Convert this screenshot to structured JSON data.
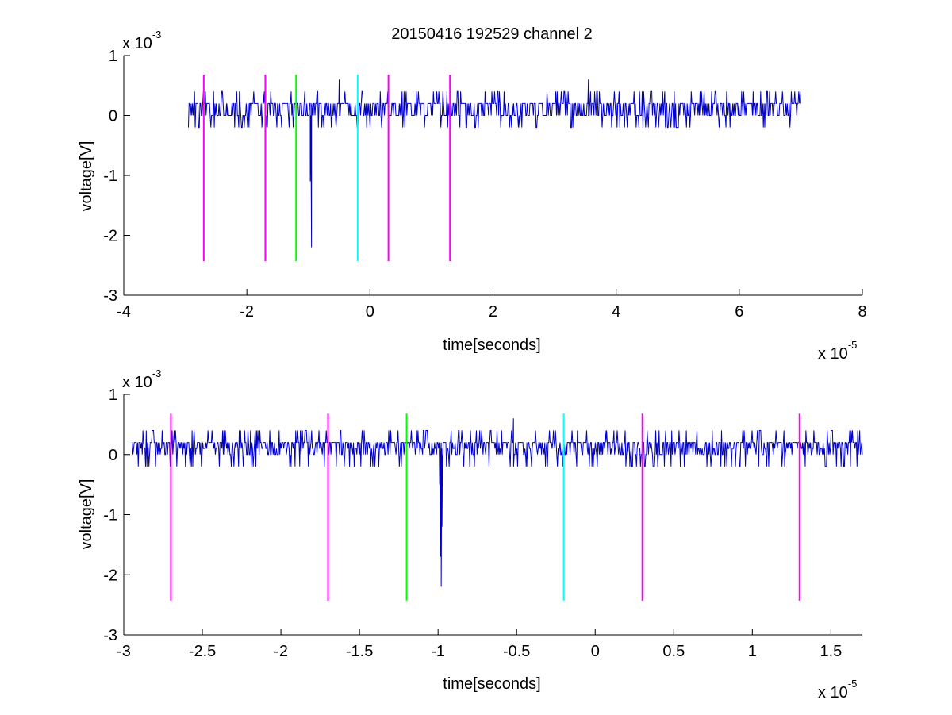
{
  "figure": {
    "title": "20150416 192529 channel 2"
  },
  "colors": {
    "signal": "#0000c8",
    "marker_magenta": "#ff00ff",
    "marker_green": "#00ff00",
    "marker_cyan": "#00ffff",
    "axes": "#000000",
    "background": "#ffffff"
  },
  "chart_data": [
    {
      "type": "line",
      "title": "20150416 192529 channel 2",
      "xlabel": "time[seconds]",
      "ylabel": "voltage[V]",
      "x_exponent_label": "x 10",
      "x_exponent": "-5",
      "y_exponent_label": "x 10",
      "y_exponent": "-3",
      "x_unit_scale": 1e-05,
      "y_unit_scale": 0.001,
      "xlim": [
        -4,
        8
      ],
      "ylim": [
        -3,
        1
      ],
      "xticks": [
        -4,
        -2,
        0,
        2,
        4,
        6,
        8
      ],
      "xtick_labels": [
        "-4",
        "-2",
        "0",
        "2",
        "4",
        "6",
        "8"
      ],
      "yticks": [
        -3,
        -2,
        -1,
        0,
        1
      ],
      "ytick_labels": [
        "-3",
        "-2",
        "-1",
        "0",
        "1"
      ],
      "grid": false,
      "series": [
        {
          "color": "#0000c8",
          "noise": {
            "x_start": -2.95,
            "x_end": 7.0,
            "levels": [
              0.2,
              0.0,
              0.2,
              0.0,
              0.2,
              0.4,
              0.0,
              -0.2,
              0.2,
              0.2,
              0.0
            ]
          },
          "spikes": [
            {
              "x": -0.97,
              "y": -1.1
            },
            {
              "x": -0.95,
              "y": -2.2
            },
            {
              "x": -0.92,
              "y": 0.0
            },
            {
              "x": -0.5,
              "y": 0.6
            },
            {
              "x": 3.55,
              "y": 0.6
            }
          ]
        }
      ],
      "markers": [
        {
          "x": -2.7,
          "y_top": 0.68,
          "y_bottom": -2.43,
          "color": "#ff00ff"
        },
        {
          "x": -1.7,
          "y_top": 0.68,
          "y_bottom": -2.43,
          "color": "#ff00ff"
        },
        {
          "x": -1.2,
          "y_top": 0.68,
          "y_bottom": -2.43,
          "color": "#00ff00"
        },
        {
          "x": -0.2,
          "y_top": 0.68,
          "y_bottom": -2.43,
          "color": "#00ffff"
        },
        {
          "x": 0.3,
          "y_top": 0.68,
          "y_bottom": -2.43,
          "color": "#ff00ff"
        },
        {
          "x": 1.3,
          "y_top": 0.68,
          "y_bottom": -2.43,
          "color": "#ff00ff"
        }
      ]
    },
    {
      "type": "line",
      "xlabel": "time[seconds]",
      "ylabel": "voltage[V]",
      "x_exponent_label": "x 10",
      "x_exponent": "-5",
      "y_exponent_label": "x 10",
      "y_exponent": "-3",
      "x_unit_scale": 1e-05,
      "y_unit_scale": 0.001,
      "xlim": [
        -3.0,
        1.7
      ],
      "ylim": [
        -3,
        1
      ],
      "xticks": [
        -3,
        -2.5,
        -2,
        -1.5,
        -1,
        -0.5,
        0,
        0.5,
        1,
        1.5
      ],
      "xtick_labels": [
        "-3",
        "-2.5",
        "-2",
        "-1.5",
        "-1",
        "-0.5",
        "0",
        "0.5",
        "1",
        "1.5"
      ],
      "yticks": [
        -3,
        -2,
        -1,
        0,
        1
      ],
      "ytick_labels": [
        "-3",
        "-2",
        "-1",
        "0",
        "1"
      ],
      "grid": false,
      "series": [
        {
          "color": "#0000c8",
          "noise": {
            "x_start": -2.95,
            "x_end": 1.7,
            "levels": [
              0.2,
              0.0,
              0.2,
              0.1,
              0.2,
              0.4,
              0.0,
              -0.2,
              0.2,
              0.2,
              0.1
            ]
          },
          "spikes": [
            {
              "x": -0.99,
              "y": -0.5
            },
            {
              "x": -0.985,
              "y": -1.7
            },
            {
              "x": -0.98,
              "y": -2.2
            },
            {
              "x": -0.975,
              "y": -1.2
            },
            {
              "x": -0.97,
              "y": -0.2
            },
            {
              "x": -0.52,
              "y": 0.6
            }
          ]
        }
      ],
      "markers": [
        {
          "x": -2.7,
          "y_top": 0.68,
          "y_bottom": -2.43,
          "color": "#ff00ff"
        },
        {
          "x": -1.7,
          "y_top": 0.68,
          "y_bottom": -2.43,
          "color": "#ff00ff"
        },
        {
          "x": -1.2,
          "y_top": 0.68,
          "y_bottom": -2.43,
          "color": "#00ff00"
        },
        {
          "x": -0.2,
          "y_top": 0.68,
          "y_bottom": -2.43,
          "color": "#00ffff"
        },
        {
          "x": 0.3,
          "y_top": 0.68,
          "y_bottom": -2.43,
          "color": "#ff00ff"
        },
        {
          "x": 1.3,
          "y_top": 0.68,
          "y_bottom": -2.43,
          "color": "#ff00ff"
        }
      ]
    }
  ]
}
